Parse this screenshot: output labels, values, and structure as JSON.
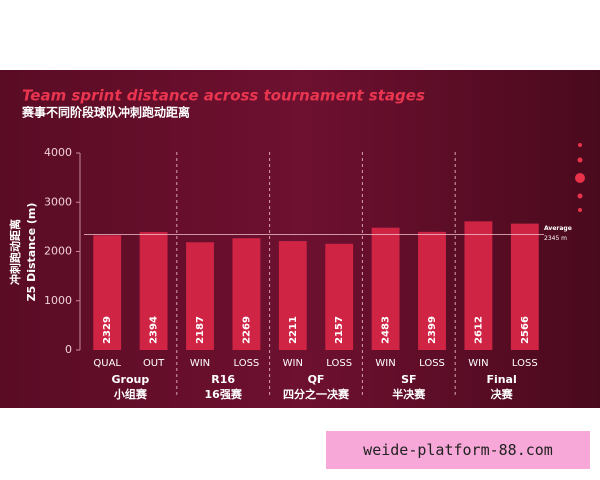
{
  "chart_data": {
    "type": "bar",
    "title": "Team sprint distance across tournament stages",
    "subtitle": "赛事不同阶段球队冲刺跑动距离",
    "y_label": "冲刺跑动距离",
    "y_label_2": "Z5 Distance (m)",
    "categories": [
      "QUAL",
      "OUT",
      "WIN",
      "LOSS",
      "WIN",
      "LOSS",
      "WIN",
      "LOSS",
      "WIN",
      "LOSS"
    ],
    "values": [
      2329,
      2394,
      2187,
      2269,
      2211,
      2157,
      2483,
      2399,
      2612,
      2566
    ],
    "color": "#cf2444",
    "groups": [
      {
        "label": "Group",
        "label_cn": "小组赛"
      },
      {
        "label": "R16",
        "label_cn": "16强赛"
      },
      {
        "label": "QF",
        "label_cn": "四分之一决赛"
      },
      {
        "label": "SF",
        "label_cn": "半决赛"
      },
      {
        "label": "Final",
        "label_cn": "决赛"
      }
    ],
    "average": {
      "label": "Average",
      "value": 2345,
      "value_label": "2345 m"
    },
    "ylim": [
      0,
      4000
    ],
    "yticks": [
      0,
      1000,
      2000,
      3000,
      4000
    ],
    "grid": false
  },
  "watermark": "weide-platform-88.com"
}
